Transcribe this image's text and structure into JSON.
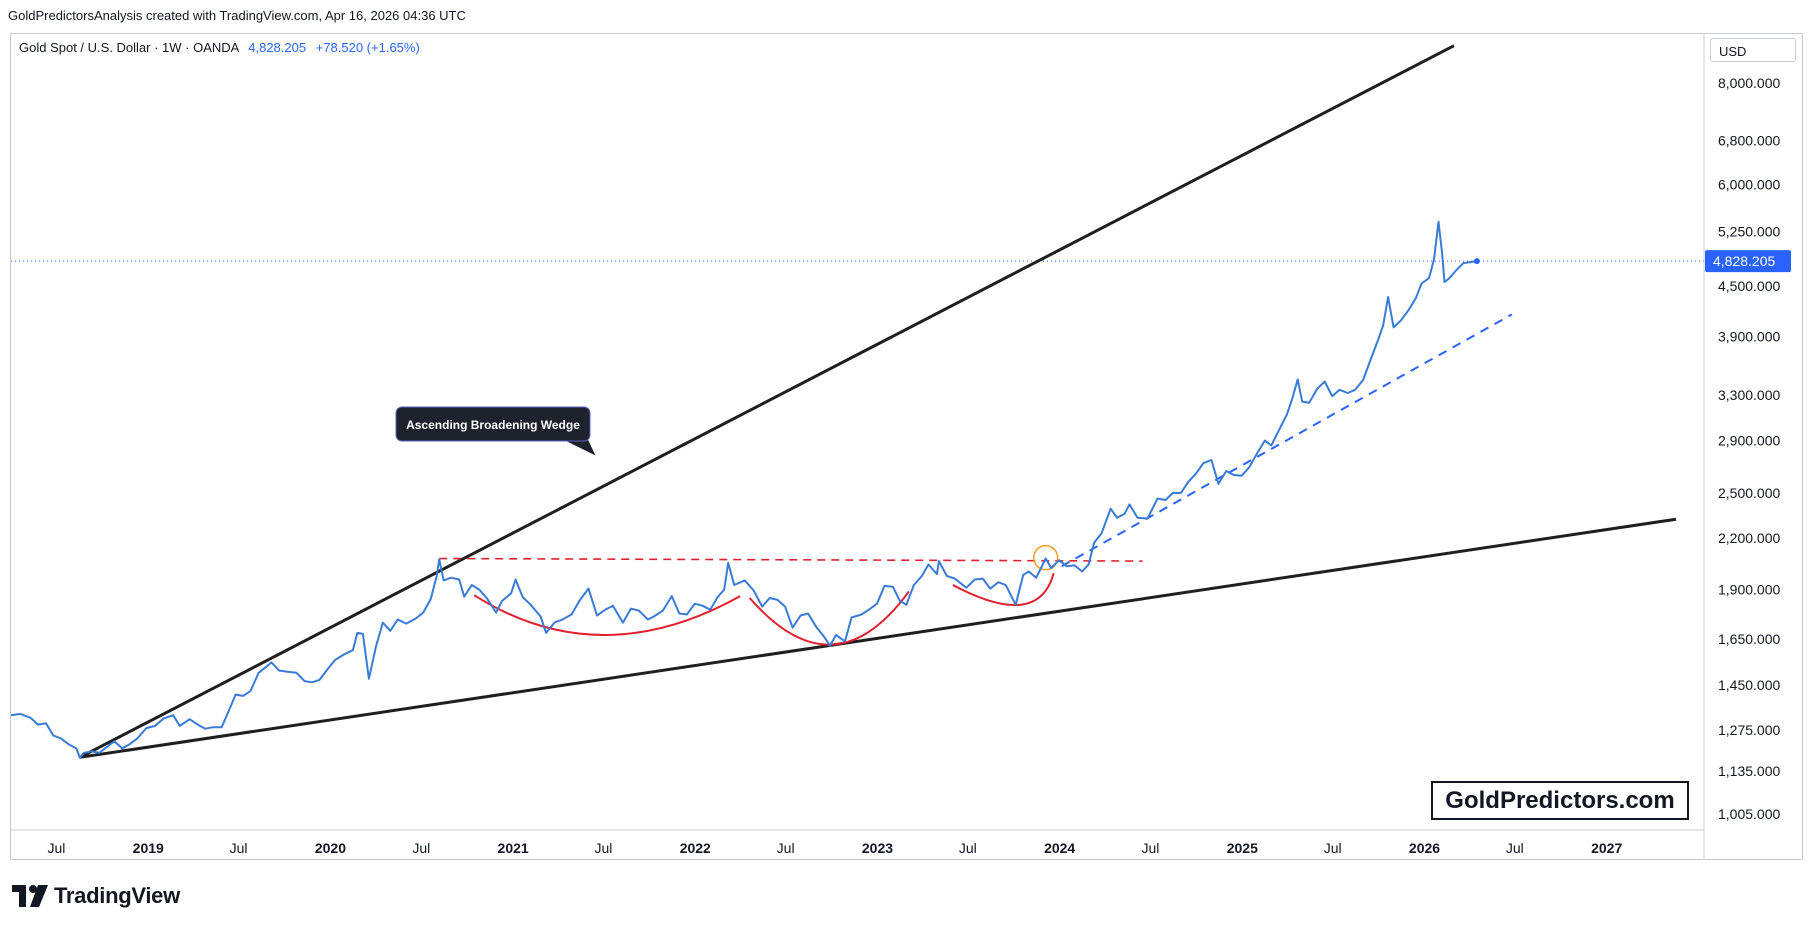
{
  "credit": "GoldPredictorsAnalysis created with TradingView.com, Apr 16, 2026 04:36 UTC",
  "legend": {
    "symbol": "Gold Spot / U.S. Dollar · 1W · OANDA",
    "price": "4,828.205",
    "change": "+78.520 (+1.65%)"
  },
  "currency": "USD",
  "brand": "GoldPredictors.com",
  "footer_logo": "TradingView",
  "colors": {
    "price_line": "#3a7bd5",
    "wedge": "#1f1f1f",
    "arc": "#e0202e",
    "resistance": "#e0202e",
    "support_dashed": "#2962ff",
    "last_price_tag": "#2962ff",
    "circle": "#f0a020"
  },
  "chart_data": {
    "type": "line",
    "title": "Gold Spot / U.S. Dollar · 1W · OANDA",
    "annotation": "Ascending Broadening Wedge",
    "y_scale": "log",
    "ylim": [
      960,
      9200
    ],
    "y_ticks": [
      {
        "value": 1005,
        "label": "1,005.000"
      },
      {
        "value": 1135,
        "label": "1,135.000"
      },
      {
        "value": 1275,
        "label": "1,275.000"
      },
      {
        "value": 1450,
        "label": "1,450.000"
      },
      {
        "value": 1650,
        "label": "1,650.000"
      },
      {
        "value": 1900,
        "label": "1,900.000"
      },
      {
        "value": 2200,
        "label": "2,200.000"
      },
      {
        "value": 2500,
        "label": "2,500.000"
      },
      {
        "value": 2900,
        "label": "2,900.000"
      },
      {
        "value": 3300,
        "label": "3,300.000"
      },
      {
        "value": 3900,
        "label": "3,900.000"
      },
      {
        "value": 4500,
        "label": "4,500.000"
      },
      {
        "value": 5250,
        "label": "5,250.000"
      },
      {
        "value": 6000,
        "label": "6,000.000"
      },
      {
        "value": 6800,
        "label": "6,800.000"
      },
      {
        "value": 8000,
        "label": "8,000.000"
      }
    ],
    "last_price": {
      "value": 4828.205,
      "label": "4,828.205"
    },
    "xlim": [
      "2018-04-01",
      "2027-07-15"
    ],
    "x_ticks": [
      {
        "date": "2018-07-01",
        "label": "Jul",
        "bold": false
      },
      {
        "date": "2019-01-01",
        "label": "2019",
        "bold": true
      },
      {
        "date": "2019-07-01",
        "label": "Jul",
        "bold": false
      },
      {
        "date": "2020-01-01",
        "label": "2020",
        "bold": true
      },
      {
        "date": "2020-07-01",
        "label": "Jul",
        "bold": false
      },
      {
        "date": "2021-01-01",
        "label": "2021",
        "bold": true
      },
      {
        "date": "2021-07-01",
        "label": "Jul",
        "bold": false
      },
      {
        "date": "2022-01-01",
        "label": "2022",
        "bold": true
      },
      {
        "date": "2022-07-01",
        "label": "Jul",
        "bold": false
      },
      {
        "date": "2023-01-01",
        "label": "2023",
        "bold": true
      },
      {
        "date": "2023-07-01",
        "label": "Jul",
        "bold": false
      },
      {
        "date": "2024-01-01",
        "label": "2024",
        "bold": true
      },
      {
        "date": "2024-07-01",
        "label": "Jul",
        "bold": false
      },
      {
        "date": "2025-01-01",
        "label": "2025",
        "bold": true
      },
      {
        "date": "2025-07-01",
        "label": "Jul",
        "bold": false
      },
      {
        "date": "2026-01-01",
        "label": "2026",
        "bold": true
      },
      {
        "date": "2026-07-01",
        "label": "Jul",
        "bold": false
      },
      {
        "date": "2027-01-01",
        "label": "2027",
        "bold": true
      }
    ],
    "series": [
      {
        "values": [
          [
            "2018-04-01",
            1330
          ],
          [
            "2018-04-20",
            1335
          ],
          [
            "2018-05-10",
            1320
          ],
          [
            "2018-05-25",
            1295
          ],
          [
            "2018-06-10",
            1300
          ],
          [
            "2018-06-25",
            1255
          ],
          [
            "2018-07-10",
            1245
          ],
          [
            "2018-07-25",
            1225
          ],
          [
            "2018-08-10",
            1210
          ],
          [
            "2018-08-17",
            1178
          ],
          [
            "2018-08-25",
            1195
          ],
          [
            "2018-09-10",
            1200
          ],
          [
            "2018-09-25",
            1195
          ],
          [
            "2018-10-10",
            1215
          ],
          [
            "2018-10-25",
            1235
          ],
          [
            "2018-11-10",
            1210
          ],
          [
            "2018-11-25",
            1225
          ],
          [
            "2018-12-10",
            1245
          ],
          [
            "2018-12-28",
            1282
          ],
          [
            "2019-01-15",
            1290
          ],
          [
            "2019-02-01",
            1318
          ],
          [
            "2019-02-20",
            1330
          ],
          [
            "2019-03-05",
            1290
          ],
          [
            "2019-03-25",
            1315
          ],
          [
            "2019-04-10",
            1295
          ],
          [
            "2019-04-25",
            1280
          ],
          [
            "2019-05-10",
            1285
          ],
          [
            "2019-05-28",
            1285
          ],
          [
            "2019-06-10",
            1340
          ],
          [
            "2019-06-25",
            1410
          ],
          [
            "2019-07-10",
            1405
          ],
          [
            "2019-07-25",
            1425
          ],
          [
            "2019-08-10",
            1500
          ],
          [
            "2019-08-25",
            1525
          ],
          [
            "2019-09-05",
            1545
          ],
          [
            "2019-09-20",
            1510
          ],
          [
            "2019-10-05",
            1505
          ],
          [
            "2019-10-25",
            1500
          ],
          [
            "2019-11-10",
            1465
          ],
          [
            "2019-11-25",
            1460
          ],
          [
            "2019-12-10",
            1470
          ],
          [
            "2019-12-28",
            1520
          ],
          [
            "2020-01-10",
            1555
          ],
          [
            "2020-01-28",
            1580
          ],
          [
            "2020-02-15",
            1600
          ],
          [
            "2020-02-24",
            1680
          ],
          [
            "2020-03-06",
            1675
          ],
          [
            "2020-03-18",
            1475
          ],
          [
            "2020-04-01",
            1615
          ],
          [
            "2020-04-15",
            1730
          ],
          [
            "2020-04-30",
            1690
          ],
          [
            "2020-05-15",
            1745
          ],
          [
            "2020-06-01",
            1725
          ],
          [
            "2020-06-20",
            1750
          ],
          [
            "2020-07-05",
            1780
          ],
          [
            "2020-07-20",
            1850
          ],
          [
            "2020-08-01",
            1975
          ],
          [
            "2020-08-06",
            2070
          ],
          [
            "2020-08-15",
            1950
          ],
          [
            "2020-08-30",
            1965
          ],
          [
            "2020-09-15",
            1955
          ],
          [
            "2020-09-25",
            1862
          ],
          [
            "2020-10-10",
            1925
          ],
          [
            "2020-10-25",
            1900
          ],
          [
            "2020-11-09",
            1855
          ],
          [
            "2020-11-28",
            1780
          ],
          [
            "2020-12-10",
            1840
          ],
          [
            "2020-12-28",
            1880
          ],
          [
            "2021-01-06",
            1955
          ],
          [
            "2021-01-20",
            1860
          ],
          [
            "2021-02-05",
            1820
          ],
          [
            "2021-02-25",
            1760
          ],
          [
            "2021-03-08",
            1680
          ],
          [
            "2021-03-25",
            1730
          ],
          [
            "2021-04-10",
            1745
          ],
          [
            "2021-04-28",
            1770
          ],
          [
            "2021-05-15",
            1845
          ],
          [
            "2021-06-01",
            1905
          ],
          [
            "2021-06-18",
            1765
          ],
          [
            "2021-07-05",
            1795
          ],
          [
            "2021-07-20",
            1815
          ],
          [
            "2021-08-09",
            1730
          ],
          [
            "2021-08-25",
            1800
          ],
          [
            "2021-09-10",
            1790
          ],
          [
            "2021-09-28",
            1745
          ],
          [
            "2021-10-10",
            1760
          ],
          [
            "2021-10-28",
            1790
          ],
          [
            "2021-11-15",
            1865
          ],
          [
            "2021-11-30",
            1775
          ],
          [
            "2021-12-15",
            1770
          ],
          [
            "2021-12-31",
            1825
          ],
          [
            "2022-01-15",
            1815
          ],
          [
            "2022-01-31",
            1795
          ],
          [
            "2022-02-15",
            1860
          ],
          [
            "2022-02-28",
            1900
          ],
          [
            "2022-03-08",
            2050
          ],
          [
            "2022-03-20",
            1925
          ],
          [
            "2022-04-10",
            1950
          ],
          [
            "2022-04-28",
            1895
          ],
          [
            "2022-05-15",
            1810
          ],
          [
            "2022-05-30",
            1855
          ],
          [
            "2022-06-15",
            1845
          ],
          [
            "2022-06-30",
            1810
          ],
          [
            "2022-07-15",
            1705
          ],
          [
            "2022-07-31",
            1765
          ],
          [
            "2022-08-15",
            1775
          ],
          [
            "2022-08-31",
            1710
          ],
          [
            "2022-09-15",
            1665
          ],
          [
            "2022-09-28",
            1620
          ],
          [
            "2022-10-10",
            1670
          ],
          [
            "2022-10-28",
            1640
          ],
          [
            "2022-11-10",
            1755
          ],
          [
            "2022-11-30",
            1770
          ],
          [
            "2022-12-15",
            1795
          ],
          [
            "2022-12-31",
            1825
          ],
          [
            "2023-01-15",
            1920
          ],
          [
            "2023-02-01",
            1915
          ],
          [
            "2023-02-15",
            1840
          ],
          [
            "2023-02-28",
            1820
          ],
          [
            "2023-03-15",
            1925
          ],
          [
            "2023-03-31",
            1975
          ],
          [
            "2023-04-13",
            2040
          ],
          [
            "2023-04-30",
            1985
          ],
          [
            "2023-05-04",
            2060
          ],
          [
            "2023-05-20",
            1975
          ],
          [
            "2023-06-05",
            1960
          ],
          [
            "2023-06-28",
            1910
          ],
          [
            "2023-07-15",
            1955
          ],
          [
            "2023-07-31",
            1960
          ],
          [
            "2023-08-15",
            1905
          ],
          [
            "2023-08-31",
            1940
          ],
          [
            "2023-09-15",
            1925
          ],
          [
            "2023-10-05",
            1820
          ],
          [
            "2023-10-20",
            1980
          ],
          [
            "2023-10-31",
            2000
          ],
          [
            "2023-11-15",
            1965
          ],
          [
            "2023-12-04",
            2075
          ],
          [
            "2023-12-15",
            2020
          ],
          [
            "2023-12-31",
            2065
          ],
          [
            "2024-01-15",
            2030
          ],
          [
            "2024-01-31",
            2035
          ],
          [
            "2024-02-15",
            2000
          ],
          [
            "2024-02-28",
            2040
          ],
          [
            "2024-03-10",
            2170
          ],
          [
            "2024-03-25",
            2230
          ],
          [
            "2024-04-12",
            2390
          ],
          [
            "2024-04-25",
            2330
          ],
          [
            "2024-05-10",
            2355
          ],
          [
            "2024-05-20",
            2420
          ],
          [
            "2024-06-05",
            2330
          ],
          [
            "2024-06-25",
            2325
          ],
          [
            "2024-07-15",
            2460
          ],
          [
            "2024-07-31",
            2450
          ],
          [
            "2024-08-15",
            2500
          ],
          [
            "2024-08-31",
            2500
          ],
          [
            "2024-09-15",
            2580
          ],
          [
            "2024-09-30",
            2640
          ],
          [
            "2024-10-15",
            2720
          ],
          [
            "2024-10-31",
            2745
          ],
          [
            "2024-11-14",
            2565
          ],
          [
            "2024-11-30",
            2660
          ],
          [
            "2024-12-15",
            2630
          ],
          [
            "2024-12-31",
            2625
          ],
          [
            "2025-01-15",
            2690
          ],
          [
            "2025-01-31",
            2800
          ],
          [
            "2025-02-15",
            2900
          ],
          [
            "2025-02-28",
            2860
          ],
          [
            "2025-03-15",
            2985
          ],
          [
            "2025-03-31",
            3120
          ],
          [
            "2025-04-10",
            3250
          ],
          [
            "2025-04-22",
            3450
          ],
          [
            "2025-05-01",
            3240
          ],
          [
            "2025-05-15",
            3230
          ],
          [
            "2025-05-31",
            3360
          ],
          [
            "2025-06-15",
            3430
          ],
          [
            "2025-06-30",
            3290
          ],
          [
            "2025-07-15",
            3350
          ],
          [
            "2025-07-31",
            3320
          ],
          [
            "2025-08-15",
            3350
          ],
          [
            "2025-08-31",
            3445
          ],
          [
            "2025-09-15",
            3650
          ],
          [
            "2025-09-30",
            3860
          ],
          [
            "2025-10-10",
            4020
          ],
          [
            "2025-10-20",
            4360
          ],
          [
            "2025-10-31",
            4000
          ],
          [
            "2025-11-15",
            4080
          ],
          [
            "2025-11-30",
            4200
          ],
          [
            "2025-12-15",
            4350
          ],
          [
            "2025-12-26",
            4530
          ],
          [
            "2026-01-10",
            4600
          ],
          [
            "2026-01-20",
            4850
          ],
          [
            "2026-01-29",
            5400
          ],
          [
            "2026-02-05",
            4950
          ],
          [
            "2026-02-10",
            4550
          ],
          [
            "2026-02-20",
            4600
          ],
          [
            "2026-03-05",
            4700
          ],
          [
            "2026-03-20",
            4800
          ],
          [
            "2026-04-16",
            4828
          ]
        ]
      }
    ],
    "overlays": {
      "wedge_upper": [
        [
          "2018-08-17",
          1180
        ],
        [
          "2026-03-01",
          8900
        ]
      ],
      "wedge_lower": [
        [
          "2018-08-17",
          1180
        ],
        [
          "2027-05-20",
          2320
        ]
      ],
      "resistance_dashed": [
        [
          "2020-08-06",
          2075
        ],
        [
          "2024-06-15",
          2060
        ]
      ],
      "support_dashed": [
        [
          "2024-01-05",
          2030
        ],
        [
          "2026-06-25",
          4150
        ]
      ],
      "arcs": [
        {
          "start": [
            "2020-10-15",
            1870
          ],
          "mid": [
            "2021-07-01",
            1670
          ],
          "end": [
            "2022-04-01",
            1865
          ]
        },
        {
          "start": [
            "2022-04-20",
            1855
          ],
          "mid": [
            "2022-10-01",
            1625
          ],
          "end": [
            "2023-03-05",
            1890
          ]
        },
        {
          "start": [
            "2023-06-01",
            1925
          ],
          "mid": [
            "2023-10-15",
            1820
          ],
          "end": [
            "2023-12-20",
            1990
          ]
        }
      ],
      "circle": [
        "2023-12-04",
        2080
      ],
      "callout_tip": [
        "2021-06-15",
        2780
      ]
    }
  }
}
